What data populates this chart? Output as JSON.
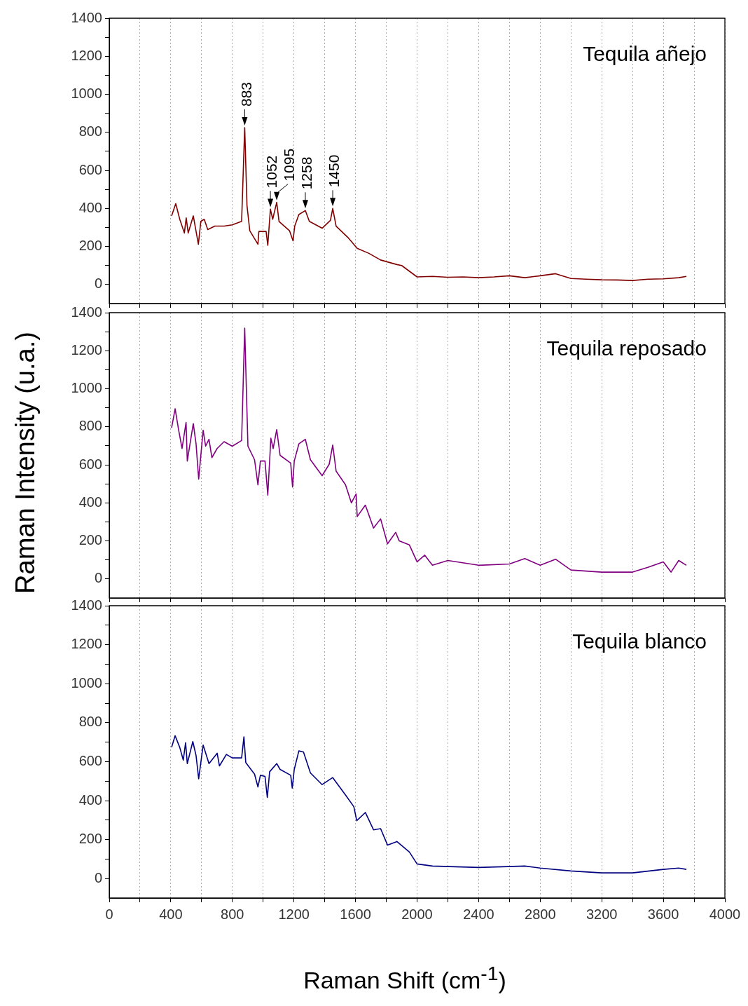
{
  "chart_data": [
    {
      "type": "line",
      "xlim": [
        0,
        4000
      ],
      "ylim": [
        -100,
        1400
      ],
      "xticks": [
        0,
        {
          "value": 200,
          "label": null
        },
        400,
        {
          "value": 600,
          "label": null
        },
        800,
        {
          "value": 1000,
          "label": null
        },
        1200,
        {
          "value": 1400,
          "label": null
        },
        1600,
        {
          "value": 1800,
          "label": null
        },
        2000,
        {
          "value": 2200,
          "label": null
        },
        2400,
        {
          "value": 2600,
          "label": null
        },
        2800,
        {
          "value": 3000,
          "label": null
        },
        3200,
        {
          "value": 3400,
          "label": null
        },
        3600,
        {
          "value": 3800,
          "label": null
        },
        4000
      ],
      "yticks": [
        0,
        {
          "value": 100,
          "label": null
        },
        200,
        {
          "value": 300,
          "label": null
        },
        400,
        {
          "value": 500,
          "label": null
        },
        600,
        {
          "value": 700,
          "label": null
        },
        800,
        {
          "value": 900,
          "label": null
        },
        1000,
        {
          "value": 1100,
          "label": null
        },
        1200,
        {
          "value": 1300,
          "label": null
        },
        1400
      ],
      "grid": "x",
      "tick_labels": "y",
      "legend": false,
      "series": [
        {
          "color": "#800000",
          "x": [
            405,
            432,
            458,
            488,
            500,
            513,
            546,
            579,
            595,
            617,
            640,
            686,
            747,
            799,
            860,
            880,
            895,
            913,
            966,
            972,
            1019,
            1030,
            1047,
            1062,
            1088,
            1103,
            1171,
            1194,
            1205,
            1232,
            1274,
            1300,
            1383,
            1437,
            1452,
            1474,
            1550,
            1611,
            1687,
            1763,
            1869,
            1900,
            2000,
            2100,
            2200,
            2300,
            2400,
            2500,
            2600,
            2700,
            2800,
            2900,
            3000,
            3100,
            3200,
            3300,
            3400,
            3500,
            3600,
            3700,
            3750
          ],
          "values": [
            361,
            425,
            343,
            271,
            350,
            271,
            361,
            212,
            332,
            343,
            289,
            307,
            307,
            314,
            332,
            825,
            414,
            283,
            212,
            279,
            279,
            206,
            396,
            343,
            432,
            332,
            283,
            230,
            307,
            368,
            389,
            332,
            296,
            337,
            400,
            307,
            248,
            190,
            164,
            129,
            105,
            100,
            40,
            43,
            38,
            40,
            36,
            40,
            46,
            36,
            46,
            57,
            32,
            28,
            25,
            24,
            21,
            28,
            30,
            36,
            43
          ]
        }
      ],
      "annotations": [
        "Tequila añejo",
        {
          "text": "883",
          "x": 880,
          "y": 825
        },
        {
          "text": "1052",
          "x": 1047,
          "y": 396
        },
        {
          "text": "1095",
          "x": 1088,
          "y": 432
        },
        {
          "text": "1258",
          "x": 1274,
          "y": 389
        },
        {
          "text": "1450",
          "x": 1452,
          "y": 400
        }
      ]
    },
    {
      "type": "line",
      "xlim": [
        0,
        4000
      ],
      "ylim": [
        -100,
        1400
      ],
      "xticks": [
        0,
        {
          "value": 200,
          "label": null
        },
        400,
        {
          "value": 600,
          "label": null
        },
        800,
        {
          "value": 1000,
          "label": null
        },
        1200,
        {
          "value": 1400,
          "label": null
        },
        1600,
        {
          "value": 1800,
          "label": null
        },
        2000,
        {
          "value": 2200,
          "label": null
        },
        2400,
        {
          "value": 2600,
          "label": null
        },
        2800,
        {
          "value": 3000,
          "label": null
        },
        3200,
        {
          "value": 3400,
          "label": null
        },
        3600,
        {
          "value": 3800,
          "label": null
        },
        4000
      ],
      "yticks": [
        0,
        {
          "value": 100,
          "label": null
        },
        200,
        {
          "value": 300,
          "label": null
        },
        400,
        {
          "value": 500,
          "label": null
        },
        600,
        {
          "value": 700,
          "label": null
        },
        800,
        {
          "value": 900,
          "label": null
        },
        1000,
        {
          "value": 1100,
          "label": null
        },
        1200,
        {
          "value": 1300,
          "label": null
        },
        1400
      ],
      "grid": "x",
      "tick_labels": "y",
      "legend": false,
      "ylabel": "Raman Intensity (u.a.)",
      "series": [
        {
          "color": "#800080",
          "x": [
            405,
            428,
            451,
            473,
            499,
            507,
            546,
            564,
            581,
            610,
            626,
            648,
            667,
            701,
            746,
            799,
            860,
            880,
            901,
            944,
            966,
            982,
            1012,
            1030,
            1050,
            1065,
            1088,
            1110,
            1179,
            1191,
            1202,
            1232,
            1274,
            1307,
            1383,
            1429,
            1452,
            1474,
            1535,
            1573,
            1604,
            1611,
            1664,
            1717,
            1763,
            1808,
            1861,
            1884,
            1950,
            2000,
            2050,
            2100,
            2200,
            2400,
            2600,
            2700,
            2800,
            2900,
            3000,
            3200,
            3400,
            3500,
            3600,
            3650,
            3700,
            3750
          ],
          "values": [
            794,
            895,
            782,
            686,
            823,
            620,
            817,
            710,
            525,
            782,
            698,
            734,
            638,
            686,
            722,
            698,
            728,
            1319,
            698,
            627,
            495,
            620,
            620,
            441,
            740,
            686,
            785,
            650,
            609,
            483,
            620,
            710,
            734,
            627,
            543,
            603,
            704,
            567,
            495,
            400,
            447,
            328,
            388,
            268,
            316,
            185,
            245,
            200,
            179,
            90,
            125,
            72,
            97,
            72,
            79,
            107,
            72,
            104,
            47,
            36,
            36,
            61,
            90,
            36,
            97,
            72
          ]
        }
      ],
      "annotations": [
        "Tequila reposado"
      ]
    },
    {
      "type": "line",
      "xlim": [
        0,
        4000
      ],
      "ylim": [
        -100,
        1400
      ],
      "xticks": [
        0,
        {
          "value": 200,
          "label": null
        },
        400,
        {
          "value": 600,
          "label": null
        },
        800,
        {
          "value": 1000,
          "label": null
        },
        1200,
        {
          "value": 1400,
          "label": null
        },
        1600,
        {
          "value": 1800,
          "label": null
        },
        2000,
        {
          "value": 2200,
          "label": null
        },
        2400,
        {
          "value": 2600,
          "label": null
        },
        2800,
        {
          "value": 3000,
          "label": null
        },
        3200,
        {
          "value": 3400,
          "label": null
        },
        3600,
        {
          "value": 3800,
          "label": null
        },
        4000
      ],
      "yticks": [
        0,
        {
          "value": 100,
          "label": null
        },
        200,
        {
          "value": 300,
          "label": null
        },
        400,
        {
          "value": 500,
          "label": null
        },
        600,
        {
          "value": 700,
          "label": null
        },
        800,
        {
          "value": 900,
          "label": null
        },
        1000,
        {
          "value": 1100,
          "label": null
        },
        1200,
        {
          "value": 1300,
          "label": null
        },
        1400
      ],
      "grid": "x",
      "legend": false,
      "xlabel": "Raman Shift (cm$^{-1}$)",
      "series": [
        {
          "color": "#000080",
          "x": [
            405,
            428,
            458,
            481,
            496,
            507,
            543,
            564,
            581,
            610,
            648,
            701,
            716,
            761,
            799,
            860,
            875,
            887,
            944,
            966,
            982,
            1012,
            1027,
            1042,
            1088,
            1110,
            1179,
            1189,
            1202,
            1232,
            1262,
            1307,
            1383,
            1452,
            1535,
            1589,
            1608,
            1664,
            1717,
            1763,
            1808,
            1869,
            1950,
            2000,
            2100,
            2400,
            2700,
            2800,
            3000,
            3200,
            3400,
            3600,
            3700,
            3750
          ],
          "values": [
            673,
            733,
            673,
            608,
            697,
            590,
            703,
            631,
            512,
            685,
            590,
            643,
            578,
            637,
            619,
            619,
            727,
            595,
            536,
            470,
            530,
            524,
            416,
            548,
            590,
            560,
            530,
            464,
            560,
            655,
            649,
            542,
            482,
            518,
            429,
            369,
            297,
            339,
            250,
            256,
            172,
            190,
            136,
            75,
            64,
            57,
            64,
            54,
            39,
            29,
            29,
            47,
            54,
            47
          ]
        }
      ],
      "annotations": [
        "Tequila blanco"
      ]
    }
  ]
}
